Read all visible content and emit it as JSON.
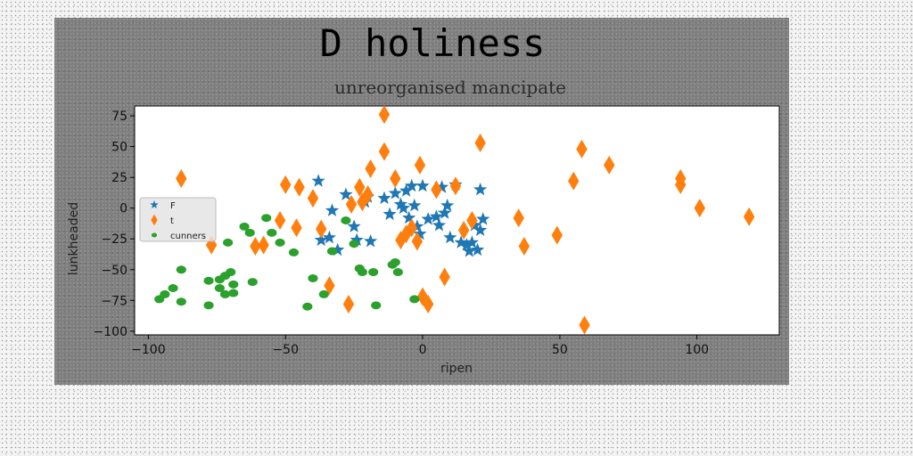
{
  "chart_data": {
    "type": "scatter",
    "title": "D holiness",
    "subtitle": "unreorganised mancipate",
    "xlabel": "ripen",
    "ylabel": "lunkheaded",
    "xlim": [
      -105,
      130
    ],
    "ylim": [
      -103,
      83
    ],
    "xticks": [
      -100,
      -50,
      0,
      50,
      100
    ],
    "yticks": [
      75,
      50,
      25,
      0,
      -25,
      -50,
      -75,
      -100
    ],
    "grid": false,
    "legend_position": "left",
    "series": [
      {
        "name": "F",
        "marker": "star",
        "color": "#1f77b4",
        "points": [
          [
            -38,
            22
          ],
          [
            -33,
            -2
          ],
          [
            -28,
            11
          ],
          [
            -25,
            -15
          ],
          [
            -24,
            -26
          ],
          [
            -34,
            -24
          ],
          [
            -37,
            -26
          ],
          [
            -31,
            -34
          ],
          [
            -21,
            5
          ],
          [
            -20,
            9
          ],
          [
            -19,
            -27
          ],
          [
            -14,
            8
          ],
          [
            -12,
            -5
          ],
          [
            -10,
            12
          ],
          [
            -8,
            3
          ],
          [
            -7,
            0
          ],
          [
            -6,
            14
          ],
          [
            -5,
            -8
          ],
          [
            -4,
            18
          ],
          [
            -3,
            2
          ],
          [
            -2,
            -15
          ],
          [
            -1,
            -21
          ],
          [
            0,
            18
          ],
          [
            2,
            -9
          ],
          [
            5,
            -7
          ],
          [
            6,
            -14
          ],
          [
            7,
            17
          ],
          [
            8,
            -4
          ],
          [
            9,
            2
          ],
          [
            10,
            -24
          ],
          [
            12,
            19
          ],
          [
            14,
            -28
          ],
          [
            16,
            -30
          ],
          [
            17,
            -35
          ],
          [
            18,
            -28
          ],
          [
            19,
            -14
          ],
          [
            20,
            -34
          ],
          [
            21,
            15
          ],
          [
            22,
            -9
          ],
          [
            21,
            -18
          ]
        ]
      },
      {
        "name": "t",
        "marker": "diamond",
        "color": "#ff7f0e",
        "points": [
          [
            -88,
            24
          ],
          [
            -77,
            -30
          ],
          [
            -61,
            -31
          ],
          [
            -58,
            -30
          ],
          [
            -52,
            -10
          ],
          [
            -50,
            19
          ],
          [
            -45,
            17
          ],
          [
            -46,
            -16
          ],
          [
            -40,
            8
          ],
          [
            -37,
            -17
          ],
          [
            -34,
            -63
          ],
          [
            -26,
            3
          ],
          [
            -27,
            -78
          ],
          [
            -23,
            17
          ],
          [
            -22,
            5
          ],
          [
            -20,
            11
          ],
          [
            -19,
            32
          ],
          [
            -14,
            46
          ],
          [
            -14,
            76
          ],
          [
            -10,
            24
          ],
          [
            -8,
            -26
          ],
          [
            -6,
            -21
          ],
          [
            -4,
            -16
          ],
          [
            -2,
            -27
          ],
          [
            -1,
            35
          ],
          [
            0,
            -72
          ],
          [
            2,
            -78
          ],
          [
            5,
            15
          ],
          [
            8,
            -56
          ],
          [
            12,
            18
          ],
          [
            15,
            -18
          ],
          [
            18,
            -10
          ],
          [
            21,
            53
          ],
          [
            35,
            -8
          ],
          [
            37,
            -31
          ],
          [
            49,
            -22
          ],
          [
            55,
            22
          ],
          [
            58,
            48
          ],
          [
            59,
            -95
          ],
          [
            68,
            35
          ],
          [
            94,
            24
          ],
          [
            94,
            19
          ],
          [
            101,
            0
          ],
          [
            119,
            -7
          ]
        ]
      },
      {
        "name": "cunners",
        "marker": "circle",
        "color": "#2ca02c",
        "points": [
          [
            -96,
            -74
          ],
          [
            -94,
            -70
          ],
          [
            -91,
            -65
          ],
          [
            -88,
            -50
          ],
          [
            -88,
            -76
          ],
          [
            -78,
            -59
          ],
          [
            -78,
            -79
          ],
          [
            -74,
            -58
          ],
          [
            -74,
            -65
          ],
          [
            -72,
            -55
          ],
          [
            -72,
            -70
          ],
          [
            -70,
            -52
          ],
          [
            -71,
            -28
          ],
          [
            -69,
            -62
          ],
          [
            -69,
            -69
          ],
          [
            -65,
            -15
          ],
          [
            -63,
            -20
          ],
          [
            -62,
            -60
          ],
          [
            -57,
            -8
          ],
          [
            -55,
            -20
          ],
          [
            -52,
            -28
          ],
          [
            -47,
            -36
          ],
          [
            -42,
            -80
          ],
          [
            -40,
            -57
          ],
          [
            -36,
            -70
          ],
          [
            -33,
            -35
          ],
          [
            -28,
            -10
          ],
          [
            -25,
            -29
          ],
          [
            -23,
            -49
          ],
          [
            -22,
            -52
          ],
          [
            -18,
            -52
          ],
          [
            -17,
            -79
          ],
          [
            -11,
            -46
          ],
          [
            -10,
            -44
          ],
          [
            -9,
            -52
          ],
          [
            -3,
            -74
          ]
        ]
      }
    ]
  }
}
